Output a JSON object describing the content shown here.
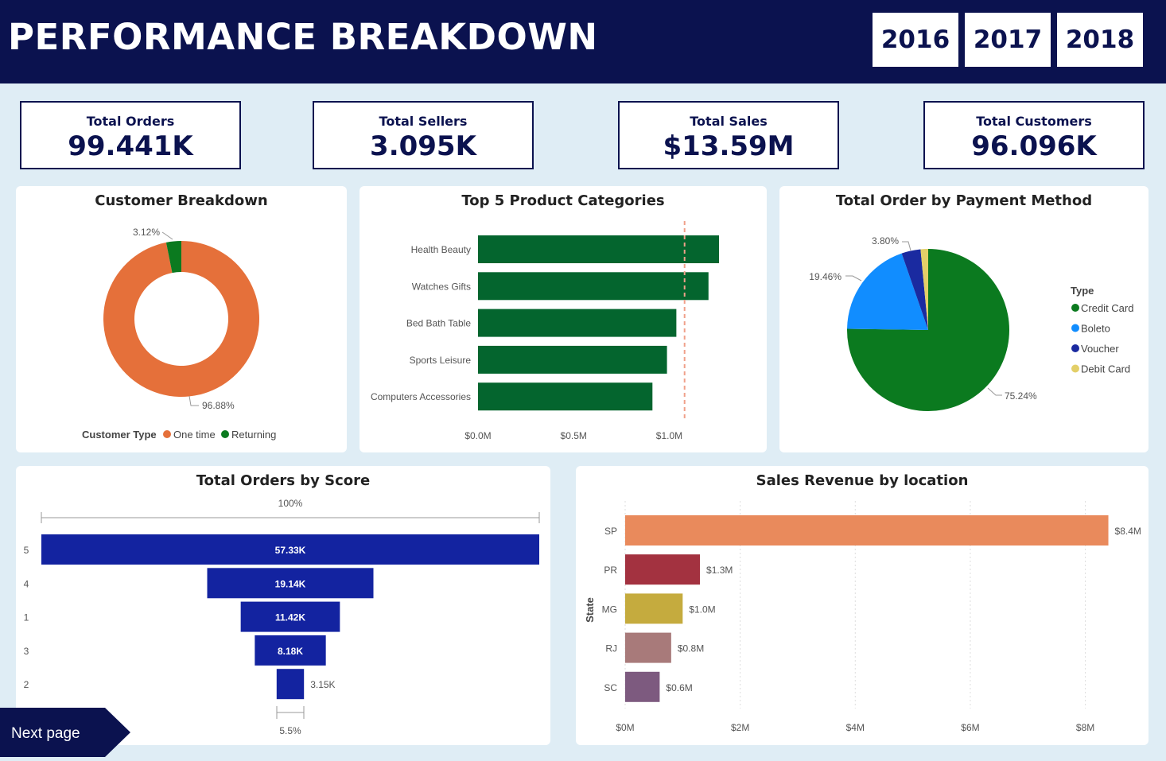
{
  "header": {
    "title": "PERFORMANCE BREAKDOWN",
    "years": [
      "2016",
      "2017",
      "2018"
    ]
  },
  "kpis": [
    {
      "label": "Total Orders",
      "value": "99.441K"
    },
    {
      "label": "Total Sellers",
      "value": "3.095K"
    },
    {
      "label": "Total Sales",
      "value": "$13.59M"
    },
    {
      "label": "Total Customers",
      "value": "96.096K"
    }
  ],
  "next_page": {
    "label": "Next page"
  },
  "colors": {
    "navy": "#0b124f",
    "green": "#04652e",
    "orange": "#e5703a",
    "funnel": "#1323a0"
  },
  "chart_data": [
    {
      "type": "pie",
      "title": "Customer Breakdown",
      "legend_title": "Customer Type",
      "legend_position": "bottom",
      "slices": [
        {
          "name": "One time",
          "value": 96.88,
          "label": "96.88%",
          "color": "#e5703a"
        },
        {
          "name": "Returning",
          "value": 3.12,
          "label": "3.12%",
          "color": "#0b7a1f"
        }
      ]
    },
    {
      "type": "bar",
      "title": "Top 5 Product Categories",
      "orientation": "horizontal",
      "categories": [
        "Health Beauty",
        "Watches Gifts",
        "Bed Bath Table",
        "Sports Leisure",
        "Computers Accessories"
      ],
      "values": [
        1.26,
        1.205,
        1.037,
        0.988,
        0.912
      ],
      "xlim": [
        0,
        1.26
      ],
      "x_ticks": [
        "$0.0M",
        "$0.5M",
        "$1.0M"
      ],
      "reference_line": 1.08,
      "color": "#04652e"
    },
    {
      "type": "pie",
      "title": "Total Order by Payment Method",
      "legend_title": "Type",
      "legend_position": "right",
      "slices": [
        {
          "name": "Credit Card",
          "value": 75.24,
          "label": "75.24%",
          "color": "#0b7a1f"
        },
        {
          "name": "Boleto",
          "value": 19.46,
          "label": "19.46%",
          "color": "#118dff"
        },
        {
          "name": "Voucher",
          "value": 3.8,
          "label": "3.80%",
          "color": "#1a2aa0"
        },
        {
          "name": "Debit Card",
          "value": 1.5,
          "label": "",
          "color": "#e3cf68"
        }
      ]
    },
    {
      "type": "funnel",
      "title": "Total Orders by Score",
      "top_label": "100%",
      "bottom_label": "5.5%",
      "categories": [
        "5",
        "4",
        "1",
        "3",
        "2"
      ],
      "values": [
        57.33,
        19.14,
        11.42,
        8.18,
        3.15
      ],
      "labels": [
        "57.33K",
        "19.14K",
        "11.42K",
        "8.18K",
        "3.15K"
      ],
      "color": "#1323a0"
    },
    {
      "type": "bar",
      "title": "Sales Revenue by location",
      "orientation": "horizontal",
      "ylabel": "State",
      "categories": [
        "SP",
        "PR",
        "MG",
        "RJ",
        "SC"
      ],
      "values": [
        8.4,
        1.3,
        1.0,
        0.8,
        0.6
      ],
      "labels": [
        "$8.4M",
        "$1.3M",
        "$1.0M",
        "$0.8M",
        "$0.6M"
      ],
      "colors": [
        "#e98a5c",
        "#a33240",
        "#c5ab3e",
        "#a87a7a",
        "#7d5a7f"
      ],
      "xlim": [
        0,
        8.6
      ],
      "x_ticks": [
        {
          "value": 0,
          "label": "$0M"
        },
        {
          "value": 2,
          "label": "$2M"
        },
        {
          "value": 4,
          "label": "$4M"
        },
        {
          "value": 6,
          "label": "$6M"
        },
        {
          "value": 8,
          "label": "$8M"
        }
      ],
      "grid": true
    }
  ]
}
